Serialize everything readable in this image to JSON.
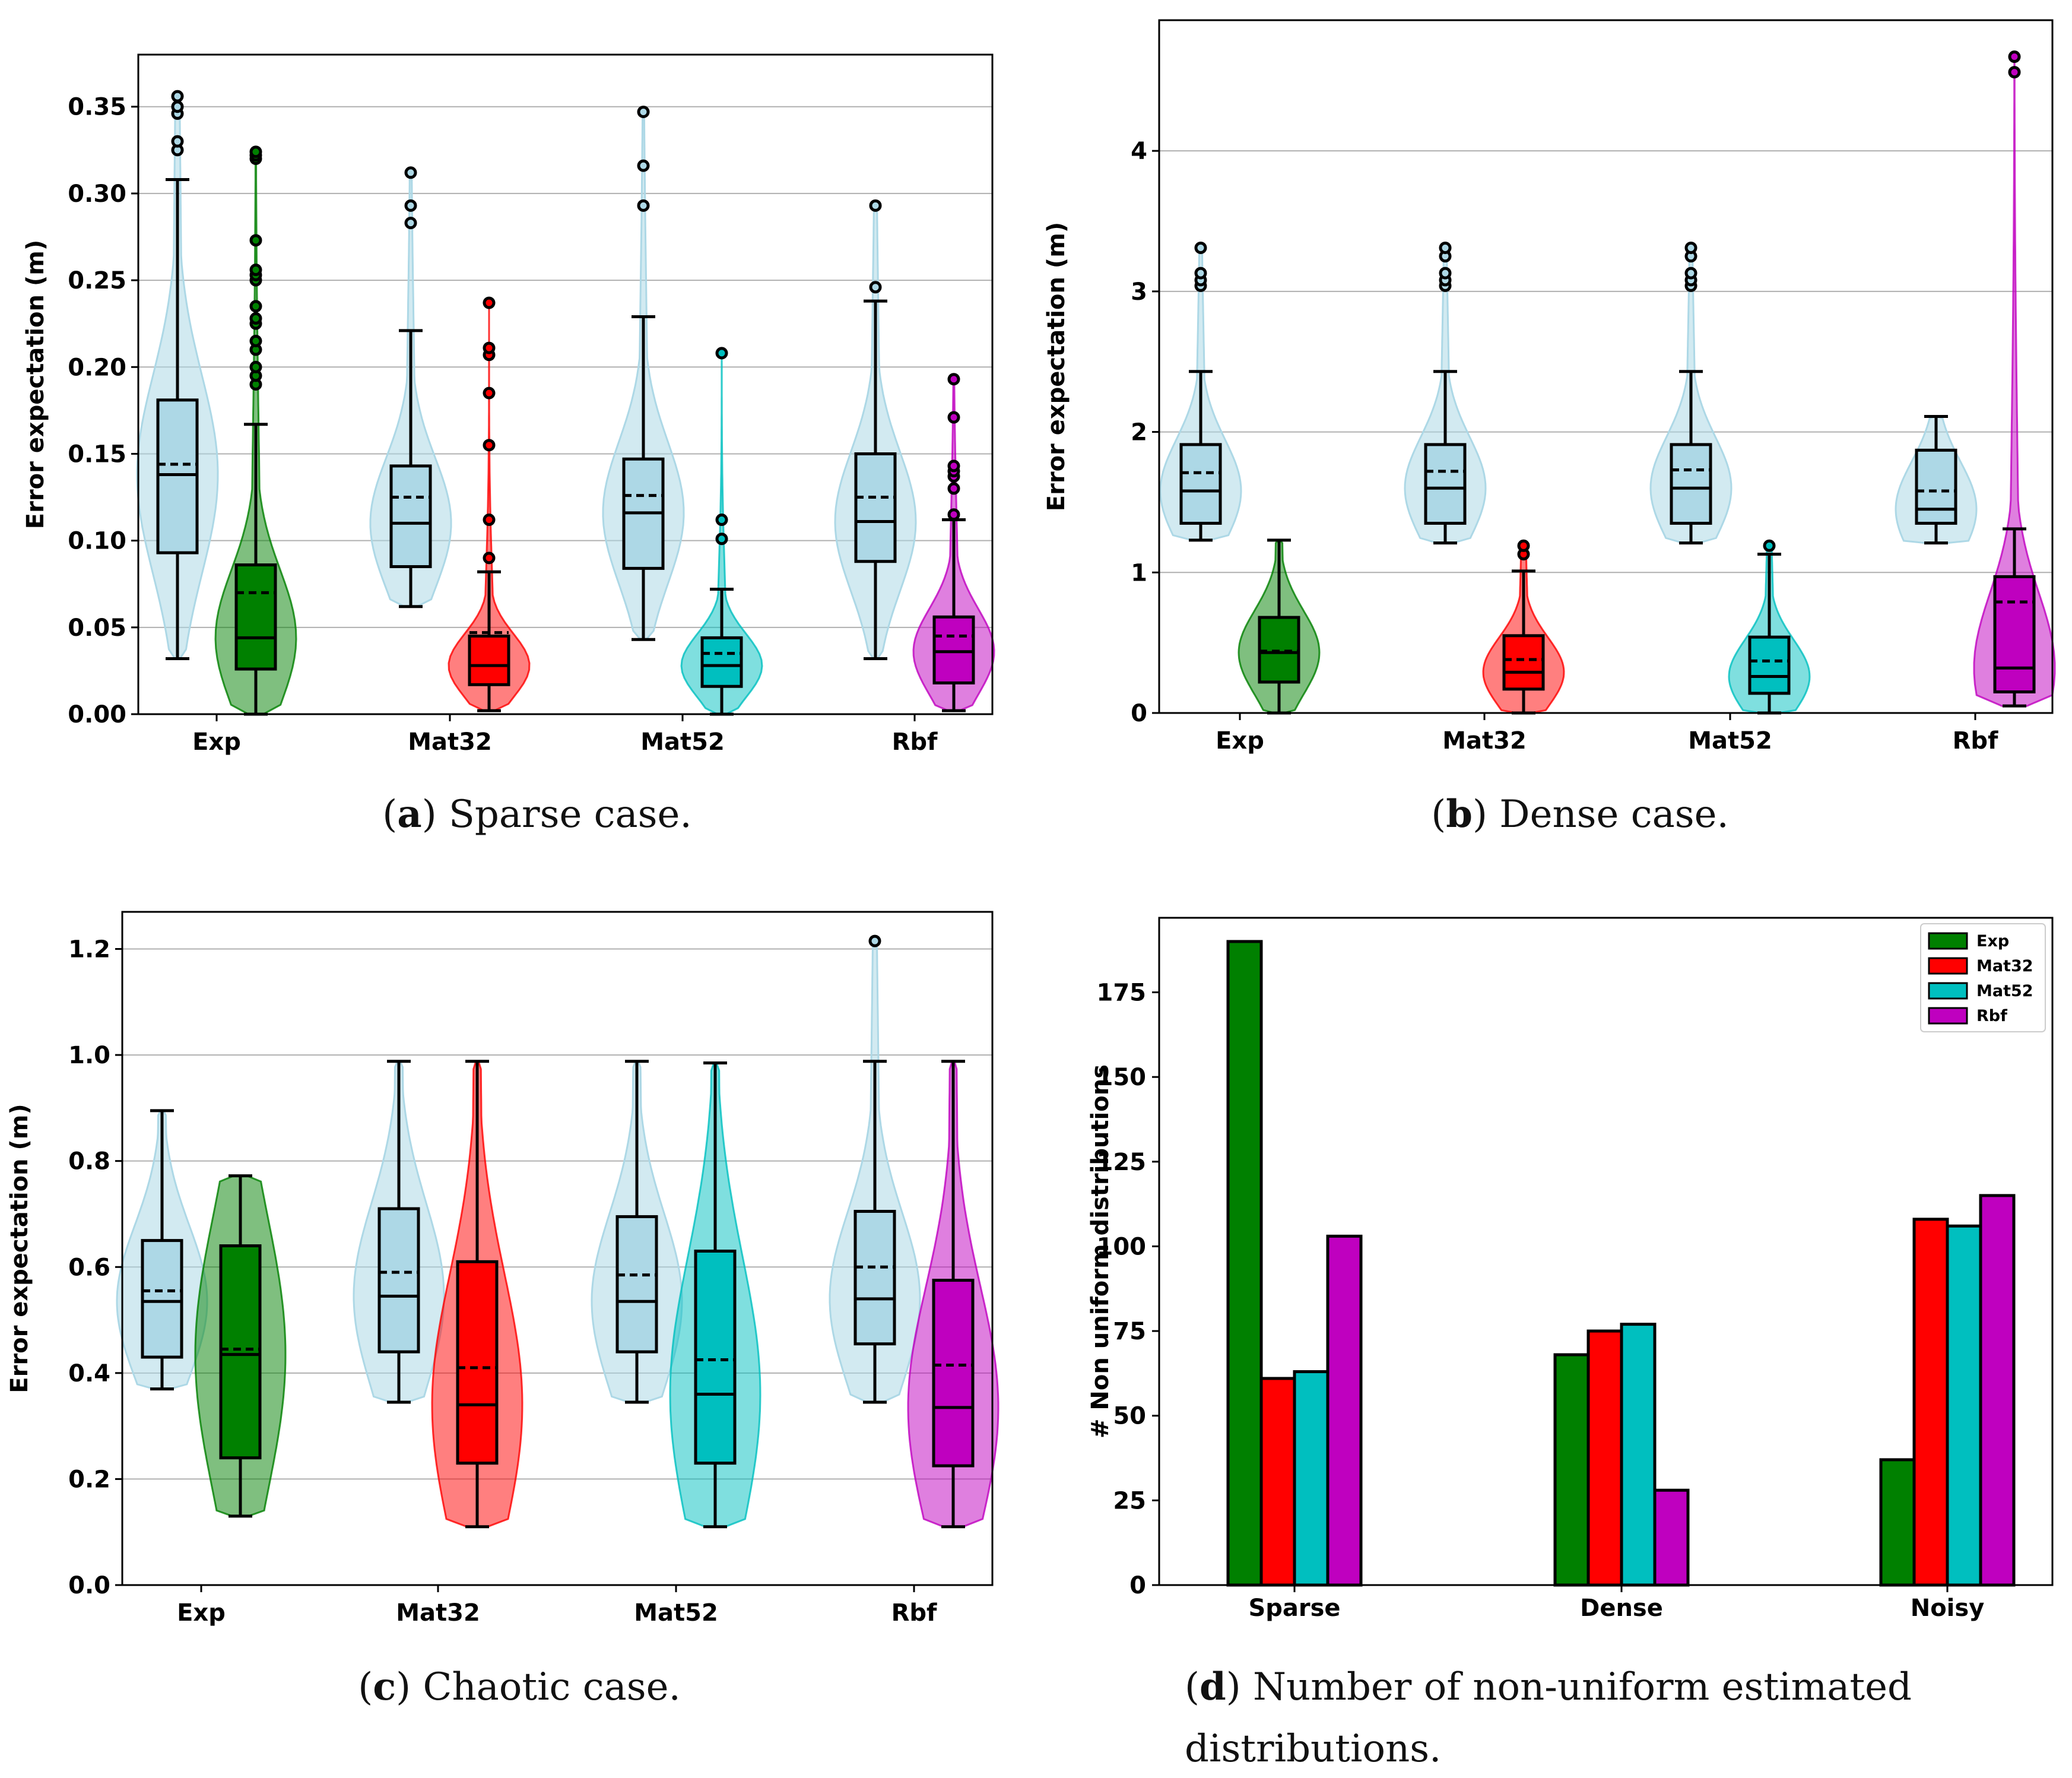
{
  "colors": {
    "baseline": "#add8e6",
    "Exp": "#008000",
    "Mat32": "#ff0000",
    "Mat52": "#00bfbf",
    "Rbf": "#bf00bf"
  },
  "chart_data": [
    {
      "id": "a",
      "type": "violin+box",
      "caption_letter": "a",
      "caption_text": " Sparse case.",
      "ylabel": "Error expectation (m)",
      "ylim": [
        0,
        0.38
      ],
      "yticks": [
        "0.00",
        "0.05",
        "0.10",
        "0.15",
        "0.20",
        "0.25",
        "0.30",
        "0.35"
      ],
      "categories": [
        "Exp",
        "Mat32",
        "Mat52",
        "Rbf"
      ],
      "groups": [
        {
          "category": "Exp",
          "baseline": {
            "q1": 0.093,
            "median": 0.138,
            "q3": 0.181,
            "mean": 0.144,
            "whisker_low": 0.032,
            "whisker_high": 0.308,
            "outliers": [
              0.325,
              0.33,
              0.346,
              0.35,
              0.356
            ],
            "min": 0.032,
            "max": 0.356
          },
          "kernel": {
            "q1": 0.026,
            "median": 0.044,
            "q3": 0.086,
            "mean": 0.07,
            "whisker_low": 0.0,
            "whisker_high": 0.167,
            "outliers": [
              0.19,
              0.195,
              0.2,
              0.21,
              0.215,
              0.225,
              0.228,
              0.235,
              0.25,
              0.253,
              0.256,
              0.273,
              0.32,
              0.322,
              0.324
            ],
            "min": 0.0,
            "max": 0.324
          }
        },
        {
          "category": "Mat32",
          "baseline": {
            "q1": 0.085,
            "median": 0.11,
            "q3": 0.143,
            "mean": 0.125,
            "whisker_low": 0.062,
            "whisker_high": 0.221,
            "outliers": [
              0.283,
              0.293,
              0.312
            ],
            "min": 0.062,
            "max": 0.312
          },
          "kernel": {
            "q1": 0.017,
            "median": 0.028,
            "q3": 0.045,
            "mean": 0.047,
            "whisker_low": 0.002,
            "whisker_high": 0.082,
            "outliers": [
              0.09,
              0.112,
              0.155,
              0.185,
              0.207,
              0.211,
              0.237
            ],
            "min": 0.002,
            "max": 0.237
          }
        },
        {
          "category": "Mat52",
          "baseline": {
            "q1": 0.084,
            "median": 0.116,
            "q3": 0.147,
            "mean": 0.126,
            "whisker_low": 0.043,
            "whisker_high": 0.229,
            "outliers": [
              0.293,
              0.316,
              0.347
            ],
            "min": 0.043,
            "max": 0.347
          },
          "kernel": {
            "q1": 0.016,
            "median": 0.028,
            "q3": 0.044,
            "mean": 0.035,
            "whisker_low": 0.0,
            "whisker_high": 0.072,
            "outliers": [
              0.101,
              0.112,
              0.208
            ],
            "min": 0.0,
            "max": 0.208
          }
        },
        {
          "category": "Rbf",
          "baseline": {
            "q1": 0.088,
            "median": 0.111,
            "q3": 0.15,
            "mean": 0.125,
            "whisker_low": 0.032,
            "whisker_high": 0.238,
            "outliers": [
              0.246,
              0.293
            ],
            "min": 0.032,
            "max": 0.293
          },
          "kernel": {
            "q1": 0.018,
            "median": 0.036,
            "q3": 0.056,
            "mean": 0.045,
            "whisker_low": 0.002,
            "whisker_high": 0.112,
            "outliers": [
              0.115,
              0.13,
              0.137,
              0.14,
              0.143,
              0.171,
              0.193
            ],
            "min": 0.002,
            "max": 0.193
          }
        }
      ]
    },
    {
      "id": "b",
      "type": "violin+box",
      "caption_letter": "b",
      "caption_text": " Dense case.",
      "ylabel": "Error expectation (m)",
      "ylim": [
        0,
        4.93
      ],
      "yticks": [
        "0",
        "1",
        "2",
        "3",
        "4"
      ],
      "categories": [
        "Exp",
        "Mat32",
        "Mat52",
        "Rbf"
      ],
      "groups": [
        {
          "category": "Exp",
          "baseline": {
            "q1": 1.35,
            "median": 1.58,
            "q3": 1.91,
            "mean": 1.71,
            "whisker_low": 1.23,
            "whisker_high": 2.43,
            "outliers": [
              3.04,
              3.08,
              3.13,
              3.31
            ],
            "min": 1.23,
            "max": 3.31
          },
          "kernel": {
            "q1": 0.22,
            "median": 0.43,
            "q3": 0.68,
            "mean": 0.44,
            "whisker_low": 0.0,
            "whisker_high": 1.23,
            "outliers": [],
            "min": 0.0,
            "max": 1.23
          }
        },
        {
          "category": "Mat32",
          "baseline": {
            "q1": 1.35,
            "median": 1.6,
            "q3": 1.91,
            "mean": 1.72,
            "whisker_low": 1.21,
            "whisker_high": 2.43,
            "outliers": [
              3.04,
              3.08,
              3.13,
              3.25,
              3.31
            ],
            "min": 1.21,
            "max": 3.31
          },
          "kernel": {
            "q1": 0.17,
            "median": 0.29,
            "q3": 0.55,
            "mean": 0.38,
            "whisker_low": 0.0,
            "whisker_high": 1.01,
            "outliers": [
              1.13,
              1.19
            ],
            "min": 0.0,
            "max": 1.19
          }
        },
        {
          "category": "Mat52",
          "baseline": {
            "q1": 1.35,
            "median": 1.6,
            "q3": 1.91,
            "mean": 1.73,
            "whisker_low": 1.21,
            "whisker_high": 2.43,
            "outliers": [
              3.04,
              3.08,
              3.13,
              3.25,
              3.31
            ],
            "min": 1.21,
            "max": 3.31
          },
          "kernel": {
            "q1": 0.14,
            "median": 0.26,
            "q3": 0.54,
            "mean": 0.37,
            "whisker_low": 0.0,
            "whisker_high": 1.13,
            "outliers": [
              1.19
            ],
            "min": 0.0,
            "max": 1.19
          }
        },
        {
          "category": "Rbf",
          "baseline": {
            "q1": 1.35,
            "median": 1.45,
            "q3": 1.87,
            "mean": 1.58,
            "whisker_low": 1.21,
            "whisker_high": 2.11,
            "outliers": [],
            "min": 1.21,
            "max": 2.11
          },
          "kernel": {
            "q1": 0.15,
            "median": 0.32,
            "q3": 0.97,
            "mean": 0.79,
            "whisker_low": 0.05,
            "whisker_high": 1.31,
            "outliers": [
              4.56,
              4.67
            ],
            "min": 0.05,
            "max": 4.67
          }
        }
      ]
    },
    {
      "id": "c",
      "type": "violin+box",
      "caption_letter": "c",
      "caption_text": " Chaotic case.",
      "ylabel": "Error expectation (m)",
      "ylim": [
        0,
        1.27
      ],
      "yticks": [
        "0.0",
        "0.2",
        "0.4",
        "0.6",
        "0.8",
        "1.0",
        "1.2"
      ],
      "categories": [
        "Exp",
        "Mat32",
        "Mat52",
        "Rbf"
      ],
      "groups": [
        {
          "category": "Exp",
          "baseline": {
            "q1": 0.43,
            "median": 0.535,
            "q3": 0.65,
            "mean": 0.555,
            "whisker_low": 0.37,
            "whisker_high": 0.895,
            "outliers": [],
            "min": 0.37,
            "max": 0.895
          },
          "kernel": {
            "q1": 0.24,
            "median": 0.435,
            "q3": 0.64,
            "mean": 0.445,
            "whisker_low": 0.13,
            "whisker_high": 0.772,
            "outliers": [],
            "min": 0.13,
            "max": 0.772
          }
        },
        {
          "category": "Mat32",
          "baseline": {
            "q1": 0.44,
            "median": 0.545,
            "q3": 0.71,
            "mean": 0.59,
            "whisker_low": 0.345,
            "whisker_high": 0.988,
            "outliers": [],
            "min": 0.345,
            "max": 0.988
          },
          "kernel": {
            "q1": 0.23,
            "median": 0.34,
            "q3": 0.61,
            "mean": 0.41,
            "whisker_low": 0.11,
            "whisker_high": 0.988,
            "outliers": [],
            "min": 0.11,
            "max": 0.988
          }
        },
        {
          "category": "Mat52",
          "baseline": {
            "q1": 0.44,
            "median": 0.535,
            "q3": 0.695,
            "mean": 0.585,
            "whisker_low": 0.345,
            "whisker_high": 0.988,
            "outliers": [],
            "min": 0.345,
            "max": 0.988
          },
          "kernel": {
            "q1": 0.23,
            "median": 0.36,
            "q3": 0.63,
            "mean": 0.425,
            "whisker_low": 0.11,
            "whisker_high": 0.985,
            "outliers": [],
            "min": 0.11,
            "max": 0.985
          }
        },
        {
          "category": "Rbf",
          "baseline": {
            "q1": 0.455,
            "median": 0.54,
            "q3": 0.705,
            "mean": 0.6,
            "whisker_low": 0.345,
            "whisker_high": 0.988,
            "outliers": [
              1.215
            ],
            "min": 0.345,
            "max": 1.215
          },
          "kernel": {
            "q1": 0.225,
            "median": 0.335,
            "q3": 0.575,
            "mean": 0.415,
            "whisker_low": 0.11,
            "whisker_high": 0.988,
            "outliers": [],
            "min": 0.11,
            "max": 0.988
          }
        }
      ]
    },
    {
      "id": "d",
      "type": "bar",
      "caption_letter": "d",
      "caption_line1": " Number of non-uniform estimated",
      "caption_line2": "distributions.",
      "ylabel": "# Non uniform distributions",
      "ylim": [
        0,
        197
      ],
      "yticks": [
        "0",
        "25",
        "50",
        "75",
        "100",
        "125",
        "150",
        "175"
      ],
      "categories": [
        "Sparse",
        "Dense",
        "Noisy"
      ],
      "series": [
        {
          "name": "Exp",
          "values": [
            190,
            68,
            37
          ]
        },
        {
          "name": "Mat32",
          "values": [
            61,
            75,
            108
          ]
        },
        {
          "name": "Mat52",
          "values": [
            63,
            77,
            106
          ]
        },
        {
          "name": "Rbf",
          "values": [
            103,
            28,
            115
          ]
        }
      ],
      "legend": {
        "placement": "top-right",
        "entries": [
          "Exp",
          "Mat32",
          "Mat52",
          "Rbf"
        ]
      }
    }
  ]
}
